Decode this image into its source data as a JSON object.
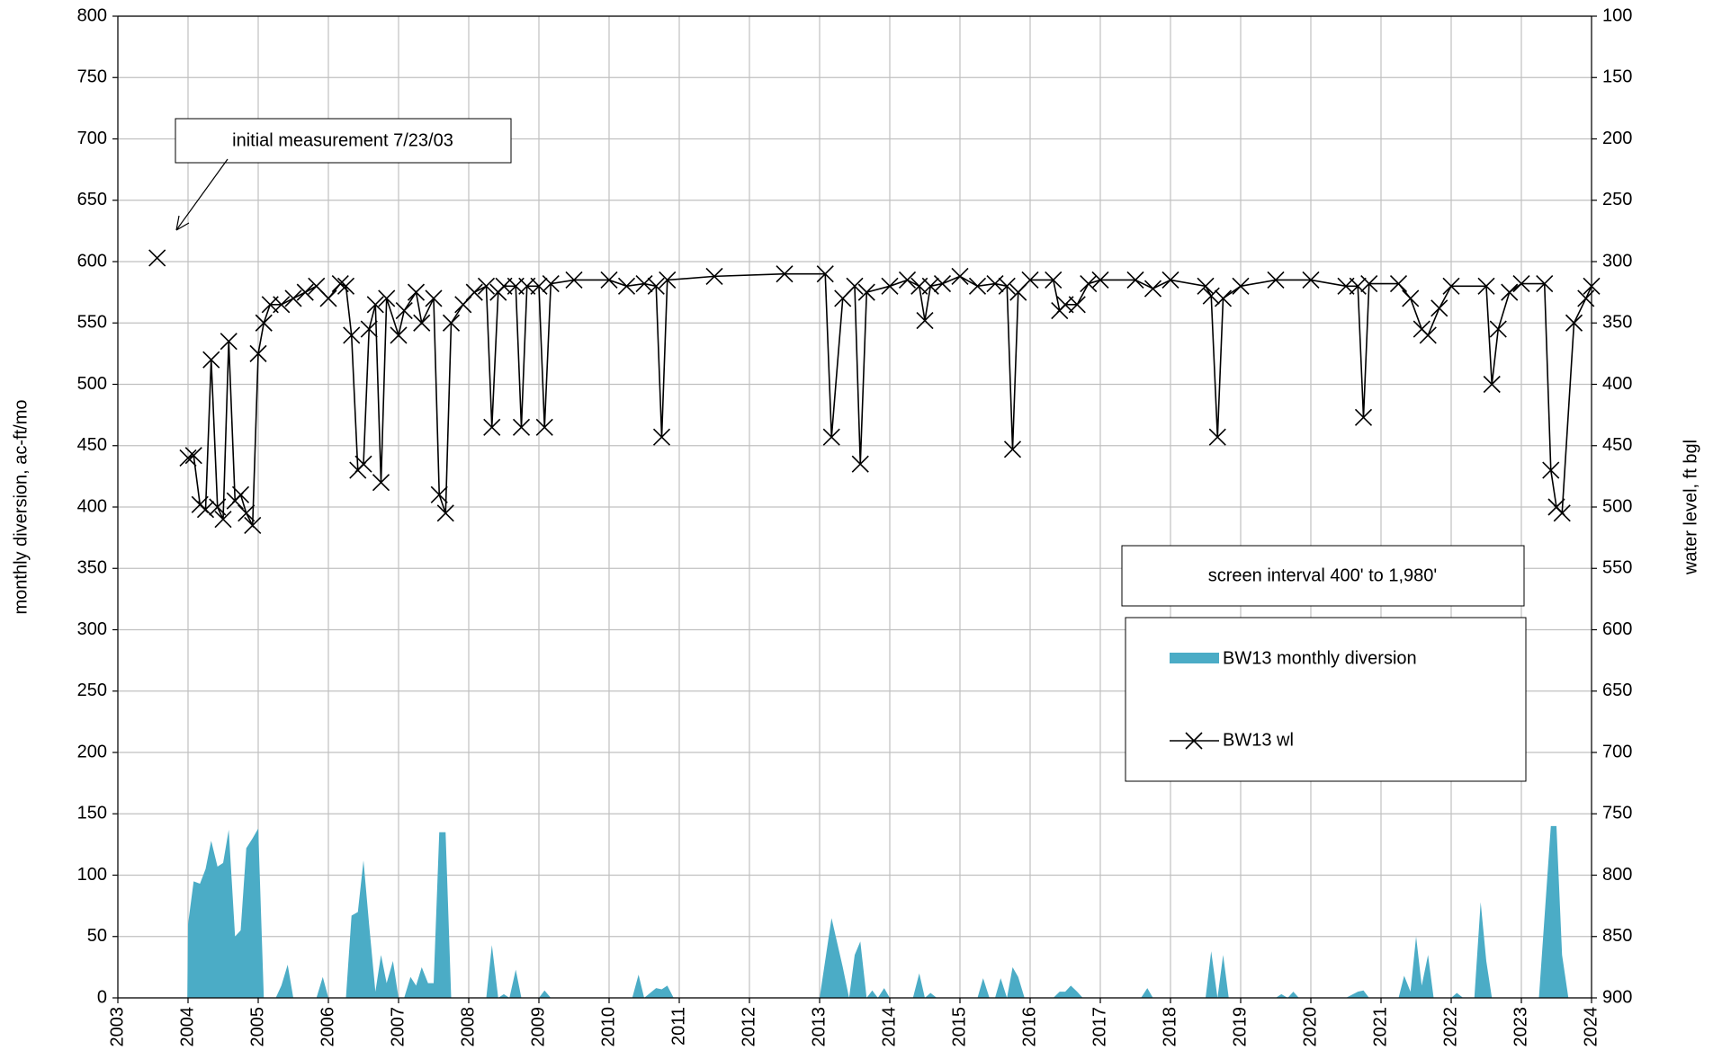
{
  "chart_data": {
    "type": "area-line",
    "ylabel": "monthly diversion, ac-ft/mo",
    "y2label": "water level, ft bgl",
    "annotations": [
      "initial measurement 7/23/03",
      "screen interval 400' to 1,980'"
    ],
    "xlim": [
      2003,
      2024
    ],
    "xticks": [
      2003,
      2004,
      2005,
      2006,
      2007,
      2008,
      2009,
      2010,
      2011,
      2012,
      2013,
      2014,
      2015,
      2016,
      2017,
      2018,
      2019,
      2020,
      2021,
      2022,
      2023,
      2024
    ],
    "ylim": [
      0,
      800
    ],
    "yticks": [
      0,
      50,
      100,
      150,
      200,
      250,
      300,
      350,
      400,
      450,
      500,
      550,
      600,
      650,
      700,
      750,
      800
    ],
    "y2lim": [
      900,
      100
    ],
    "y2ticks": [
      100,
      150,
      200,
      250,
      300,
      350,
      400,
      450,
      500,
      550,
      600,
      650,
      700,
      750,
      800,
      850,
      900
    ],
    "grid": true,
    "series": [
      {
        "name": "BW13 monthly diversion",
        "color": "#4bacc6",
        "x": [
          2003.99,
          2004.0,
          2004.08,
          2004.17,
          2004.25,
          2004.33,
          2004.42,
          2004.5,
          2004.58,
          2004.67,
          2004.75,
          2004.83,
          2004.92,
          2005.0,
          2005.08,
          2005.25,
          2005.33,
          2005.42,
          2005.5,
          2005.83,
          2005.92,
          2006.0,
          2006.25,
          2006.33,
          2006.42,
          2006.5,
          2006.58,
          2006.67,
          2006.75,
          2006.83,
          2006.92,
          2007.0,
          2007.08,
          2007.17,
          2007.25,
          2007.33,
          2007.42,
          2007.5,
          2007.58,
          2007.67,
          2007.75,
          2008.25,
          2008.33,
          2008.42,
          2008.5,
          2008.58,
          2008.67,
          2008.75,
          2009.0,
          2009.08,
          2009.17,
          2010.33,
          2010.42,
          2010.5,
          2010.67,
          2010.75,
          2010.83,
          2010.92,
          2013.0,
          2013.17,
          2013.33,
          2013.42,
          2013.5,
          2013.58,
          2013.67,
          2013.75,
          2013.83,
          2013.92,
          2014.0,
          2014.33,
          2014.42,
          2014.5,
          2014.58,
          2014.67,
          2015.25,
          2015.33,
          2015.42,
          2015.5,
          2015.58,
          2015.67,
          2015.75,
          2015.83,
          2015.92,
          2016.33,
          2016.42,
          2016.5,
          2016.58,
          2016.67,
          2016.75,
          2017.58,
          2017.67,
          2017.75,
          2018.5,
          2018.58,
          2018.67,
          2018.75,
          2018.83,
          2019.5,
          2019.58,
          2019.67,
          2019.75,
          2019.83,
          2020.5,
          2020.67,
          2020.75,
          2020.83,
          2021.25,
          2021.33,
          2021.42,
          2021.5,
          2021.58,
          2021.67,
          2021.75,
          2022.0,
          2022.08,
          2022.17,
          2022.33,
          2022.42,
          2022.5,
          2022.58,
          2023.25,
          2023.42,
          2023.5,
          2023.58,
          2023.67
        ],
        "values": [
          0,
          60,
          95,
          93,
          105,
          128,
          107,
          110,
          137,
          50,
          55,
          122,
          130,
          138,
          0,
          0,
          10,
          27,
          0,
          0,
          17,
          0,
          0,
          67,
          70,
          112,
          60,
          5,
          35,
          12,
          30,
          0,
          0,
          17,
          10,
          25,
          12,
          12,
          135,
          135,
          0,
          0,
          43,
          0,
          3,
          0,
          23,
          0,
          0,
          6,
          0,
          0,
          19,
          0,
          8,
          7,
          10,
          0,
          0,
          65,
          25,
          0,
          35,
          46,
          0,
          6,
          0,
          8,
          0,
          0,
          20,
          0,
          4,
          0,
          0,
          16,
          0,
          0,
          16,
          0,
          25,
          17,
          0,
          0,
          5,
          5,
          10,
          5,
          0,
          0,
          8,
          0,
          0,
          38,
          0,
          35,
          0,
          0,
          3,
          0,
          5,
          0,
          0,
          5,
          6,
          0,
          0,
          18,
          5,
          50,
          10,
          35,
          0,
          0,
          4,
          0,
          0,
          78,
          30,
          0,
          0,
          140,
          140,
          35,
          0
        ]
      },
      {
        "name": "BW13 wl",
        "color": "#000000",
        "axis": "y2",
        "x": [
          2003.56,
          2004.0,
          2004.08,
          2004.17,
          2004.25,
          2004.33,
          2004.42,
          2004.5,
          2004.58,
          2004.67,
          2004.75,
          2004.83,
          2004.92,
          2005.0,
          2005.08,
          2005.17,
          2005.33,
          2005.5,
          2005.67,
          2005.83,
          2006.0,
          2006.17,
          2006.25,
          2006.33,
          2006.42,
          2006.5,
          2006.58,
          2006.67,
          2006.75,
          2006.83,
          2007.0,
          2007.08,
          2007.25,
          2007.33,
          2007.5,
          2007.58,
          2007.67,
          2007.75,
          2007.92,
          2008.08,
          2008.25,
          2008.33,
          2008.42,
          2008.5,
          2008.67,
          2008.75,
          2008.83,
          2009.0,
          2009.08,
          2009.17,
          2009.5,
          2010.0,
          2010.25,
          2010.5,
          2010.67,
          2010.75,
          2010.83,
          2011.5,
          2012.5,
          2013.08,
          2013.17,
          2013.33,
          2013.5,
          2013.58,
          2013.67,
          2014.0,
          2014.25,
          2014.42,
          2014.5,
          2014.58,
          2014.75,
          2015.0,
          2015.25,
          2015.5,
          2015.67,
          2015.75,
          2015.83,
          2016.0,
          2016.33,
          2016.42,
          2016.5,
          2016.67,
          2016.83,
          2017.0,
          2017.5,
          2017.75,
          2018.0,
          2018.5,
          2018.58,
          2018.67,
          2018.75,
          2019.0,
          2019.5,
          2020.0,
          2020.5,
          2020.67,
          2020.75,
          2020.83,
          2021.25,
          2021.42,
          2021.58,
          2021.67,
          2021.83,
          2022.0,
          2022.5,
          2022.58,
          2022.67,
          2022.83,
          2023.0,
          2023.33,
          2023.42,
          2023.5,
          2023.58,
          2023.75,
          2023.92,
          2024.0
        ],
        "values": [
          297,
          460,
          458,
          498,
          502,
          380,
          500,
          510,
          365,
          495,
          490,
          505,
          515,
          375,
          350,
          335,
          335,
          330,
          325,
          320,
          330,
          318,
          320,
          360,
          470,
          465,
          355,
          335,
          480,
          330,
          360,
          340,
          325,
          350,
          330,
          490,
          505,
          350,
          335,
          325,
          320,
          435,
          325,
          320,
          320,
          435,
          320,
          320,
          435,
          318,
          315,
          315,
          320,
          318,
          320,
          443,
          315,
          312,
          310,
          310,
          443,
          330,
          320,
          465,
          325,
          320,
          315,
          320,
          348,
          320,
          318,
          312,
          320,
          318,
          320,
          453,
          325,
          315,
          315,
          340,
          335,
          335,
          318,
          315,
          315,
          322,
          315,
          320,
          328,
          443,
          330,
          320,
          315,
          315,
          320,
          320,
          427,
          318,
          318,
          330,
          355,
          360,
          338,
          320,
          320,
          400,
          355,
          325,
          318,
          318,
          470,
          500,
          505,
          350,
          330,
          320
        ]
      }
    ]
  }
}
